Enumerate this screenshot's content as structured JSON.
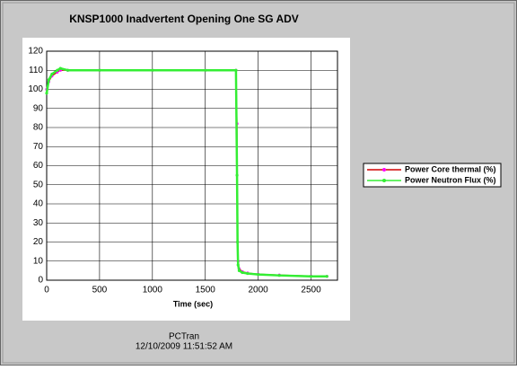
{
  "chart_data": {
    "type": "line",
    "title": "KNSP1000 Inadvertent Opening One SG ADV",
    "x_label": "Time (sec)",
    "footer": [
      "PCTran",
      "12/10/2009 11:51:52 AM"
    ],
    "x": [
      0,
      20,
      50,
      100,
      130,
      200,
      500,
      1000,
      1500,
      1790,
      1800,
      1805,
      1810,
      1820,
      1850,
      1900,
      2000,
      2200,
      2500,
      2650
    ],
    "series": [
      {
        "name": "Power Core thermal (%)",
        "color": "#d00000",
        "marker_color": "#ff00ff",
        "values": [
          100,
          104,
          107,
          109,
          110,
          110,
          110,
          110,
          110,
          110,
          82,
          20,
          10,
          6,
          4.5,
          3.8,
          3.2,
          2.7,
          2.2,
          2
        ]
      },
      {
        "name": "Power Neutron Flux (%)",
        "color": "#33ee33",
        "marker_color": "#33ee33",
        "values": [
          98,
          105,
          108,
          110,
          111,
          110,
          110,
          110,
          110,
          110,
          55,
          20,
          8,
          5,
          4,
          3.5,
          3,
          2.5,
          2,
          2
        ]
      }
    ],
    "xlim": [
      0,
      2750
    ],
    "xticks": [
      0,
      500,
      1000,
      1500,
      2000,
      2500
    ],
    "ylim": [
      0,
      120
    ],
    "yticks": [
      0,
      10,
      20,
      30,
      40,
      50,
      60,
      70,
      80,
      90,
      100,
      110,
      120
    ],
    "grid": true
  }
}
